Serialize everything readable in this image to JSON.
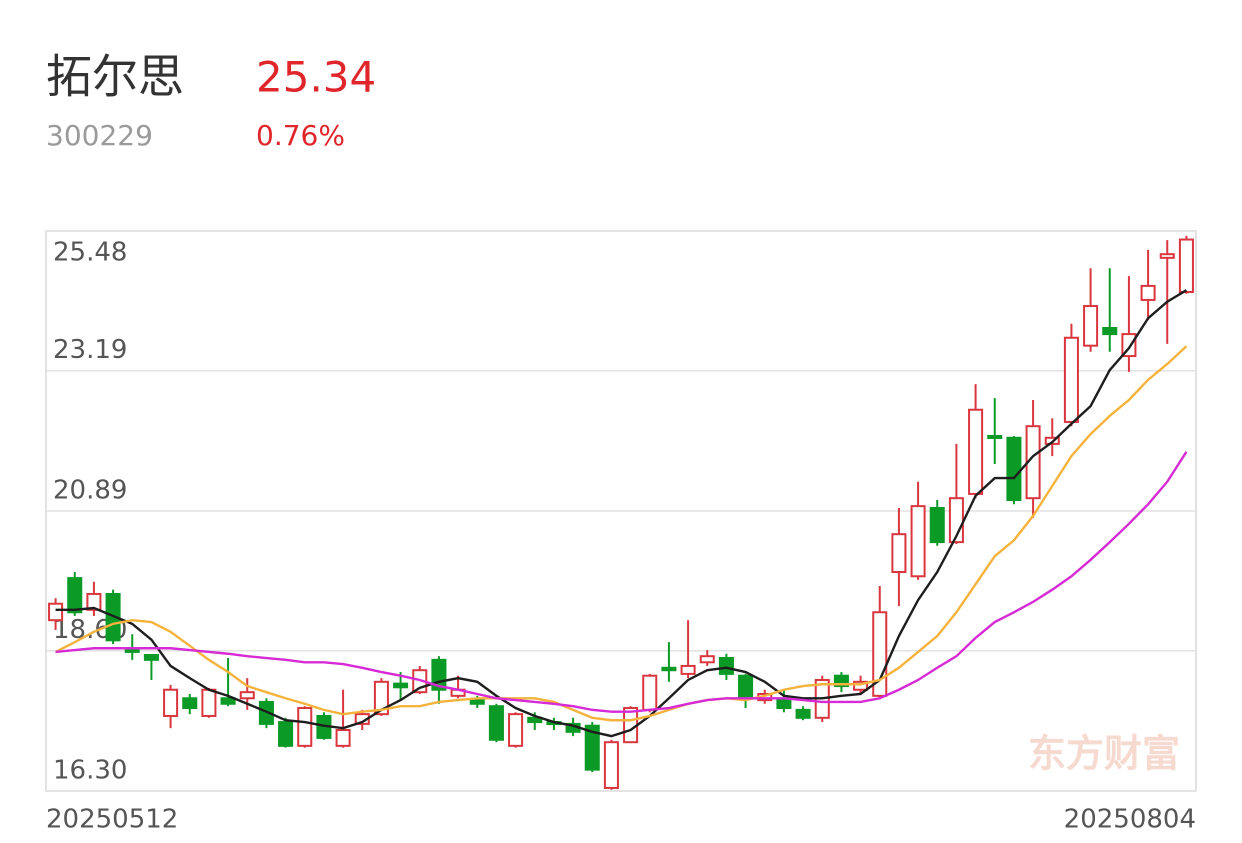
{
  "header": {
    "name": "拓尔思",
    "price": "25.34",
    "code": "300229",
    "change": "0.76%"
  },
  "watermark": "东方财富",
  "chart_data": {
    "type": "candlestick",
    "categories": [
      "20250512",
      null,
      null,
      null,
      null,
      null,
      null,
      null,
      null,
      null,
      null,
      null,
      null,
      null,
      null,
      null,
      null,
      null,
      null,
      null,
      null,
      null,
      null,
      null,
      null,
      null,
      null,
      null,
      null,
      null,
      null,
      null,
      null,
      null,
      null,
      null,
      null,
      null,
      null,
      null,
      null,
      null,
      null,
      null,
      null,
      null,
      null,
      null,
      null,
      null,
      null,
      null,
      null,
      null,
      null,
      null,
      null,
      null,
      null,
      "20250804"
    ],
    "open": [
      19.1,
      19.79,
      19.27,
      19.53,
      18.64,
      18.53,
      17.53,
      17.82,
      17.53,
      17.82,
      17.82,
      17.76,
      17.43,
      17.04,
      17.53,
      17.04,
      17.4,
      17.56,
      18.06,
      17.92,
      18.45,
      17.86,
      17.79,
      17.69,
      17.04,
      17.5,
      17.43,
      17.4,
      17.37,
      16.35,
      17.1,
      17.63,
      18.32,
      18.22,
      18.41,
      18.48,
      18.19,
      17.79,
      17.79,
      17.63,
      17.5,
      18.19,
      17.96,
      17.86,
      19.89,
      19.82,
      20.94,
      20.38,
      21.17,
      22.12,
      22.09,
      21.1,
      21.99,
      22.35,
      23.6,
      23.89,
      23.43,
      24.35,
      25.04,
      24.48
    ],
    "high": [
      19.46,
      19.89,
      19.73,
      19.6,
      18.87,
      18.53,
      18.04,
      17.89,
      17.99,
      18.48,
      18.15,
      17.82,
      17.5,
      17.69,
      17.59,
      17.96,
      17.63,
      18.15,
      18.25,
      18.35,
      18.51,
      18.19,
      17.86,
      17.73,
      17.59,
      17.59,
      17.5,
      17.5,
      17.43,
      17.14,
      17.69,
      18.22,
      18.74,
      19.1,
      18.61,
      18.55,
      18.22,
      17.96,
      17.96,
      17.69,
      18.19,
      18.25,
      18.19,
      19.66,
      20.94,
      21.37,
      21.07,
      21.99,
      22.97,
      22.74,
      22.12,
      22.71,
      22.41,
      23.96,
      24.87,
      24.87,
      24.74,
      25.17,
      25.33,
      25.4
    ],
    "low": [
      18.94,
      19.17,
      19.17,
      18.71,
      18.45,
      18.12,
      17.33,
      17.56,
      17.5,
      17.69,
      17.63,
      17.33,
      17.01,
      17.01,
      17.14,
      17.01,
      17.3,
      17.53,
      17.79,
      17.89,
      17.73,
      17.82,
      17.66,
      17.1,
      17.01,
      17.3,
      17.3,
      17.2,
      16.61,
      16.32,
      17.1,
      17.59,
      18.09,
      18.15,
      18.35,
      18.12,
      17.66,
      17.73,
      17.59,
      17.46,
      17.43,
      17.92,
      17.89,
      17.82,
      19.33,
      19.76,
      20.32,
      20.35,
      21.1,
      21.66,
      21.0,
      20.78,
      21.79,
      22.28,
      23.5,
      23.5,
      23.17,
      24.02,
      23.63,
      24.45
    ],
    "close": [
      19.37,
      19.23,
      19.53,
      18.77,
      18.58,
      18.45,
      17.96,
      17.66,
      17.96,
      17.73,
      17.92,
      17.4,
      17.04,
      17.66,
      17.17,
      17.3,
      17.56,
      18.09,
      18.0,
      18.28,
      17.96,
      17.96,
      17.73,
      17.14,
      17.56,
      17.43,
      17.4,
      17.27,
      16.65,
      17.1,
      17.66,
      18.19,
      18.28,
      18.35,
      18.51,
      18.22,
      17.82,
      17.89,
      17.66,
      17.5,
      18.12,
      18.02,
      18.09,
      19.23,
      20.51,
      20.97,
      20.38,
      21.1,
      22.55,
      22.09,
      21.07,
      22.28,
      22.09,
      23.73,
      24.25,
      23.79,
      23.79,
      24.58,
      25.1,
      25.34
    ],
    "up_color": "#d9363e",
    "down_color": "#0c9a26",
    "lines": [
      {
        "color": "#1e1e1e",
        "values": [
          19.27,
          19.27,
          19.3,
          19.17,
          19.04,
          18.78,
          18.35,
          18.15,
          17.96,
          17.86,
          17.73,
          17.6,
          17.46,
          17.43,
          17.37,
          17.33,
          17.43,
          17.63,
          17.79,
          17.99,
          18.09,
          18.15,
          18.09,
          17.86,
          17.66,
          17.53,
          17.43,
          17.37,
          17.27,
          17.2,
          17.3,
          17.53,
          17.82,
          18.12,
          18.28,
          18.32,
          18.25,
          18.09,
          17.86,
          17.82,
          17.82,
          17.86,
          17.89,
          18.12,
          18.84,
          19.43,
          19.89,
          20.48,
          21.14,
          21.43,
          21.43,
          21.79,
          22.02,
          22.32,
          22.61,
          23.2,
          23.56,
          24.05,
          24.32,
          24.51
        ]
      },
      {
        "color": "#f5b23c",
        "values": [
          18.58,
          18.74,
          18.91,
          19.04,
          19.1,
          19.07,
          18.91,
          18.68,
          18.45,
          18.25,
          18.02,
          17.92,
          17.82,
          17.73,
          17.63,
          17.56,
          17.6,
          17.63,
          17.69,
          17.69,
          17.76,
          17.79,
          17.82,
          17.82,
          17.82,
          17.82,
          17.76,
          17.63,
          17.5,
          17.46,
          17.46,
          17.53,
          17.63,
          17.73,
          17.79,
          17.82,
          17.79,
          17.86,
          17.96,
          18.02,
          18.05,
          18.05,
          18.05,
          18.12,
          18.32,
          18.58,
          18.84,
          19.23,
          19.69,
          20.15,
          20.41,
          20.81,
          21.3,
          21.79,
          22.15,
          22.45,
          22.71,
          23.04,
          23.3,
          23.59
        ]
      },
      {
        "color": "#d62ad6",
        "values": [
          18.58,
          18.61,
          18.64,
          18.64,
          18.64,
          18.64,
          18.64,
          18.61,
          18.58,
          18.55,
          18.51,
          18.48,
          18.45,
          18.41,
          18.41,
          18.38,
          18.32,
          18.25,
          18.19,
          18.12,
          18.02,
          17.96,
          17.89,
          17.82,
          17.79,
          17.76,
          17.73,
          17.69,
          17.63,
          17.6,
          17.6,
          17.63,
          17.66,
          17.73,
          17.79,
          17.82,
          17.82,
          17.82,
          17.82,
          17.79,
          17.76,
          17.76,
          17.76,
          17.82,
          17.96,
          18.12,
          18.32,
          18.51,
          18.81,
          19.07,
          19.23,
          19.4,
          19.6,
          19.82,
          20.09,
          20.38,
          20.68,
          21.0,
          21.37,
          21.86
        ]
      }
    ],
    "ylim": [
      16.3,
      25.48
    ],
    "yticks": [
      25.48,
      23.19,
      20.89,
      {
        "value": 18.6,
        "label": "18.60"
      },
      {
        "value": 16.3,
        "label": "16.30"
      }
    ],
    "grid": true
  }
}
